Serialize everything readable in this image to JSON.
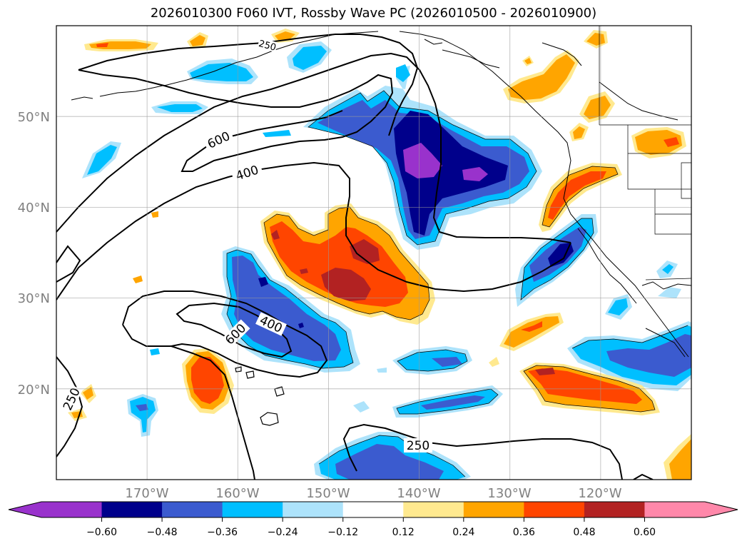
{
  "title": "2026010300 F060 IVT, Rossby Wave PC (2026010500 - 2026010900)",
  "map": {
    "lat_labels": [
      "50°N",
      "40°N",
      "30°N",
      "20°N"
    ],
    "lon_labels": [
      "170°W",
      "160°W",
      "150°W",
      "140°W",
      "130°W",
      "120°W"
    ],
    "contour_labels": [
      "600",
      "400",
      "400",
      "600",
      "250",
      "250",
      "250"
    ]
  },
  "colorbar": {
    "ticks": [
      "−0.60",
      "−0.48",
      "−0.36",
      "−0.24",
      "−0.12",
      "0.12",
      "0.24",
      "0.36",
      "0.48",
      "0.60"
    ],
    "colors": [
      "#9932cc",
      "#00008b",
      "#3b5bcf",
      "#00bfff",
      "#ade3fb",
      "#ffffff",
      "#ffe98f",
      "#ffa500",
      "#ff4500",
      "#b22222",
      "#ff88aa"
    ]
  },
  "chart_data": {
    "type": "heatmap",
    "title": "2026010300 F060 IVT, Rossby Wave PC (2026010500 - 2026010900)",
    "field": "Rossby Wave PC (filled)",
    "contour_field": "IVT (lines)",
    "contour_levels": [
      250,
      400,
      600
    ],
    "lat_range": [
      10,
      60
    ],
    "lon_range": [
      -180,
      -110
    ],
    "color_levels": [
      -0.6,
      -0.48,
      -0.36,
      -0.24,
      -0.12,
      0.12,
      0.24,
      0.36,
      0.48,
      0.6
    ],
    "features": [
      {
        "sign": "negative",
        "center_lat": 45,
        "center_lon": -142,
        "peak": -0.6
      },
      {
        "sign": "negative",
        "center_lat": 29,
        "center_lon": -152,
        "peak": -0.48
      },
      {
        "sign": "negative",
        "center_lat": 35,
        "center_lon": -127,
        "peak": -0.48
      },
      {
        "sign": "negative",
        "center_lat": 15,
        "center_lon": -143,
        "peak": -0.48
      },
      {
        "sign": "negative",
        "center_lat": 23,
        "center_lon": -118,
        "peak": -0.48
      },
      {
        "sign": "positive",
        "center_lat": 33,
        "center_lon": -150,
        "peak": 0.48
      },
      {
        "sign": "positive",
        "center_lat": 20,
        "center_lon": -164,
        "peak": 0.36
      },
      {
        "sign": "positive",
        "center_lat": 20,
        "center_lon": -127,
        "peak": 0.48
      },
      {
        "sign": "positive",
        "center_lat": 43,
        "center_lon": -125,
        "peak": 0.36
      }
    ]
  }
}
